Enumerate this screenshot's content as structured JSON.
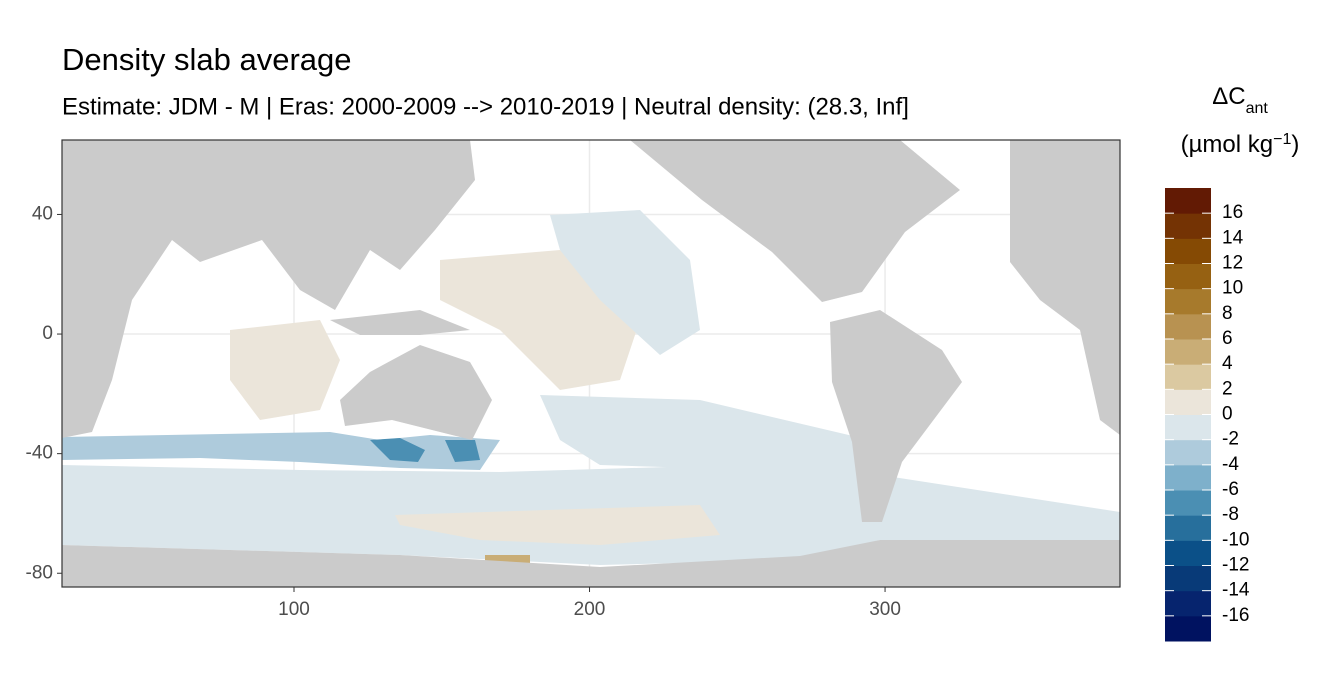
{
  "chart_data": {
    "type": "map",
    "title": "Density slab average",
    "subtitle": "Estimate: JDM - M | Eras: 2000-2009 --> 2010-2019 | Neutral density: (28.3, Inf]",
    "xlim": [
      21.5,
      379.5
    ],
    "ylim": [
      -84.6,
      64.9
    ],
    "xticks": [
      100,
      200,
      300
    ],
    "yticks": [
      40,
      0,
      -40,
      -80
    ],
    "grid": true,
    "legend": {
      "title": {
        "main": "ΔC",
        "sub": "ant",
        "unit": "(µmol kg",
        "sup": "−1",
        "close": ")"
      },
      "breaks": [
        -16,
        -14,
        -12,
        -10,
        -8,
        -6,
        -4,
        -2,
        0,
        2,
        4,
        6,
        8,
        10,
        12,
        14,
        16
      ],
      "colors": [
        "#001260",
        "#06246e",
        "#083a78",
        "#0b5088",
        "#276f9c",
        "#4b8fb3",
        "#7eb0cb",
        "#aecbdc",
        "#dbe6eb",
        "#ebe5da",
        "#dbc9a1",
        "#c9ad76",
        "#b89251",
        "#a77a2c",
        "#966112",
        "#854a04",
        "#743304",
        "#621a04"
      ]
    }
  }
}
